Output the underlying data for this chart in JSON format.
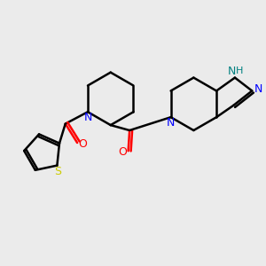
{
  "bg_color": "#ebebeb",
  "bond_color": "#000000",
  "N_color": "#0000ff",
  "NH_color": "#008080",
  "O_color": "#ff0000",
  "S_color": "#cccc00",
  "line_width": 1.8,
  "figsize": [
    3.0,
    3.0
  ],
  "dpi": 100,
  "xlim": [
    0,
    10
  ],
  "ylim": [
    0,
    10
  ]
}
